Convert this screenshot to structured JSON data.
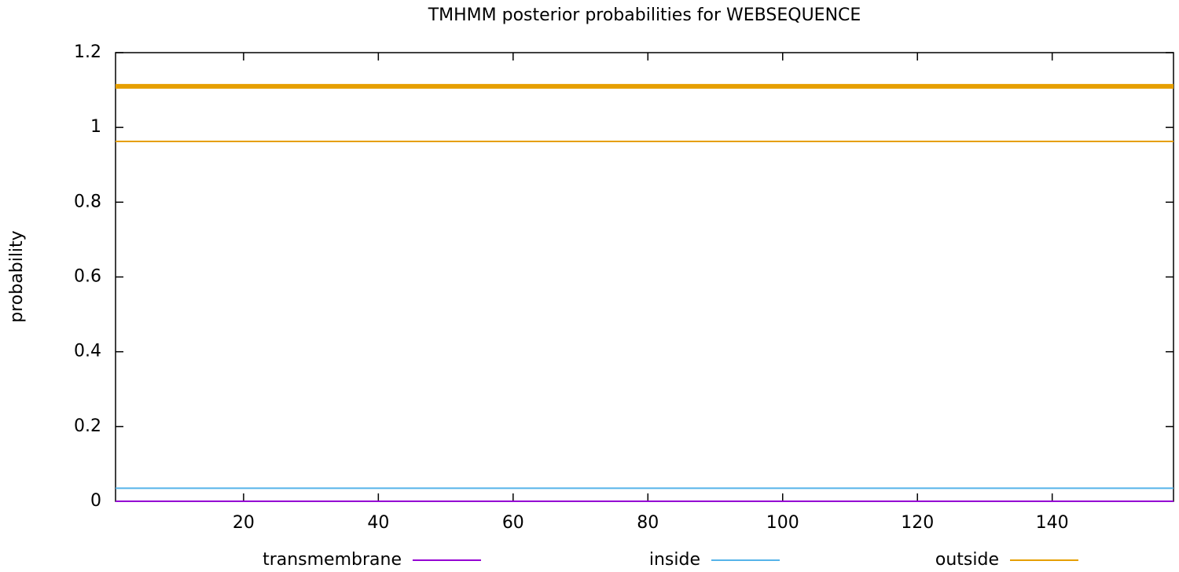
{
  "chart_data": {
    "type": "line",
    "title": "TMHMM posterior probabilities for WEBSEQUENCE",
    "y_label": "probability",
    "x": [
      1,
      158
    ],
    "series": [
      {
        "name": "transmembrane",
        "color": "#9400d3",
        "values": [
          0,
          0
        ]
      },
      {
        "name": "inside",
        "color": "#56b4e9",
        "values": [
          0.035,
          0.035
        ]
      },
      {
        "name": "outside",
        "color": "#e69f00",
        "values": [
          0.9625,
          0.9625
        ]
      },
      {
        "color": "#e69f00",
        "values": [
          1.11,
          1.11
        ],
        "line_width": 6
      }
    ],
    "xlim": [
      1,
      158
    ],
    "xticks": [
      20,
      40,
      60,
      80,
      100,
      120,
      140
    ],
    "ylim": [
      0,
      1.2
    ],
    "yticks": [
      0,
      0.2,
      0.4,
      0.6,
      0.8,
      1,
      1.2
    ],
    "legend": "bottom"
  }
}
